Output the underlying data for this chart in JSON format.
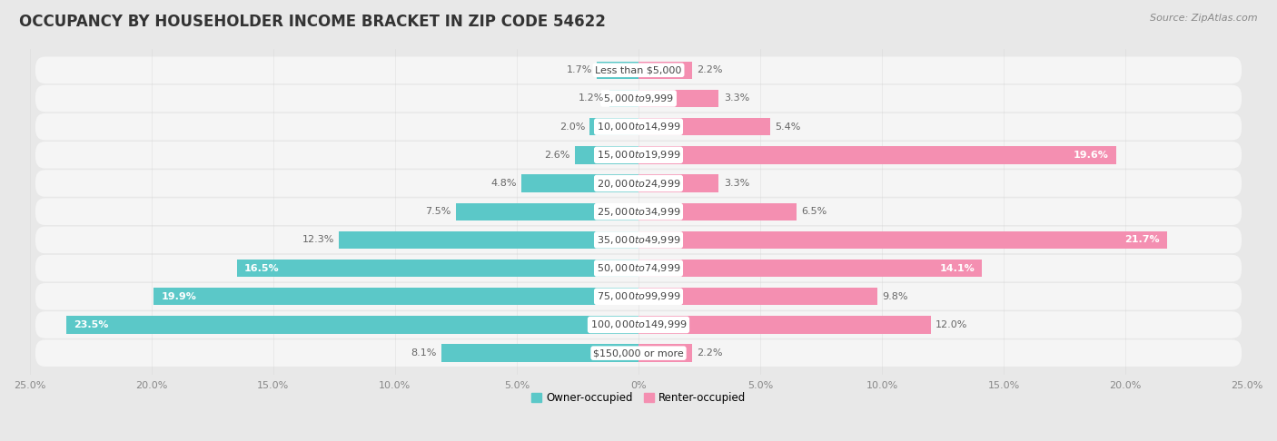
{
  "title": "OCCUPANCY BY HOUSEHOLDER INCOME BRACKET IN ZIP CODE 54622",
  "source": "Source: ZipAtlas.com",
  "categories": [
    "Less than $5,000",
    "$5,000 to $9,999",
    "$10,000 to $14,999",
    "$15,000 to $19,999",
    "$20,000 to $24,999",
    "$25,000 to $34,999",
    "$35,000 to $49,999",
    "$50,000 to $74,999",
    "$75,000 to $99,999",
    "$100,000 to $149,999",
    "$150,000 or more"
  ],
  "owner_values": [
    1.7,
    1.2,
    2.0,
    2.6,
    4.8,
    7.5,
    12.3,
    16.5,
    19.9,
    23.5,
    8.1
  ],
  "renter_values": [
    2.2,
    3.3,
    5.4,
    19.6,
    3.3,
    6.5,
    21.7,
    14.1,
    9.8,
    12.0,
    2.2
  ],
  "owner_color": "#5BC8C8",
  "renter_color": "#F48FB1",
  "bg_color": "#e8e8e8",
  "bar_row_color": "#f5f5f5",
  "bar_label_box_color": "#ffffff",
  "owner_label": "Owner-occupied",
  "renter_label": "Renter-occupied",
  "xlim": 25.0,
  "bar_height": 0.62,
  "title_fontsize": 12,
  "label_fontsize": 8,
  "cat_fontsize": 8,
  "tick_fontsize": 8,
  "source_fontsize": 8,
  "owner_inside_threshold": 14.0,
  "renter_inside_threshold": 14.0
}
